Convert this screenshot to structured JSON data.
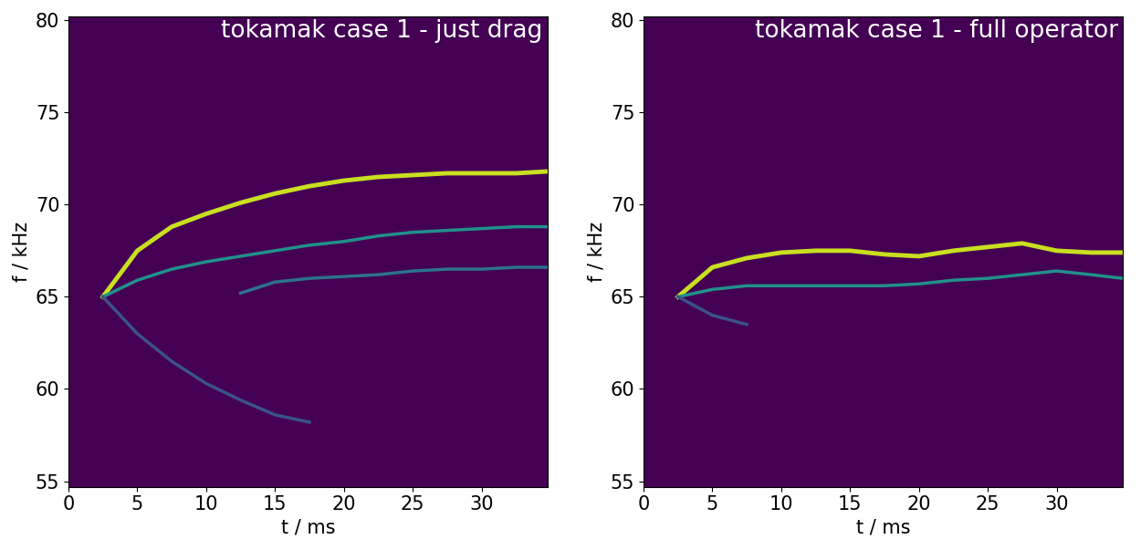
{
  "chart_data": [
    {
      "type": "line",
      "title": "tokamak case 1 - just drag",
      "x_label": "t / ms",
      "y_label": "f / kHz",
      "x": [
        2.5,
        5,
        7.5,
        10,
        12.5,
        15,
        17.5,
        20,
        22.5,
        25,
        27.5,
        30,
        32.5,
        34.8
      ],
      "series": [
        {
          "color": "#c8e020",
          "values": [
            65.0,
            67.5,
            68.8,
            69.5,
            70.1,
            70.6,
            71.0,
            71.3,
            71.5,
            71.6,
            71.7,
            71.7,
            71.7,
            71.8
          ]
        },
        {
          "color": "#21918c",
          "values": [
            65.0,
            65.9,
            66.5,
            66.9,
            67.2,
            67.5,
            67.8,
            68.0,
            68.3,
            68.5,
            68.6,
            68.7,
            68.8,
            68.8
          ]
        },
        {
          "color": "#2c728e",
          "values": [
            null,
            null,
            null,
            null,
            65.2,
            65.8,
            66.0,
            66.1,
            66.2,
            66.4,
            66.5,
            66.5,
            66.6,
            66.6
          ]
        },
        {
          "color": "#3b528b",
          "values": [
            65.0,
            63.0,
            61.5,
            60.3,
            59.4,
            58.6,
            58.2,
            null,
            null,
            null,
            null,
            null,
            null,
            null
          ]
        }
      ],
      "xlim": [
        0,
        34.8
      ],
      "ylim": [
        54.7,
        80.2
      ],
      "xticks": [
        0,
        5,
        10,
        15,
        20,
        25,
        30
      ],
      "yticks": [
        55,
        60,
        65,
        70,
        75,
        80
      ]
    },
    {
      "type": "line",
      "title": "tokamak case 1 - full operator",
      "x_label": "t / ms",
      "y_label": "f / kHz",
      "x": [
        2.5,
        5,
        7.5,
        10,
        12.5,
        15,
        17.5,
        20,
        22.5,
        25,
        27.5,
        30,
        32.5,
        34.8
      ],
      "series": [
        {
          "color": "#c8e020",
          "values": [
            65.0,
            66.6,
            67.1,
            67.4,
            67.5,
            67.5,
            67.3,
            67.2,
            67.5,
            67.7,
            67.9,
            67.5,
            67.4,
            67.4
          ]
        },
        {
          "color": "#21918c",
          "values": [
            65.0,
            65.4,
            65.6,
            65.6,
            65.6,
            65.6,
            65.6,
            65.7,
            65.9,
            66.0,
            66.2,
            66.4,
            66.2,
            66.0
          ]
        },
        {
          "color": "#3b528b",
          "values": [
            65.0,
            64.0,
            63.5,
            null,
            null,
            null,
            null,
            null,
            null,
            null,
            null,
            null,
            null,
            null
          ]
        }
      ],
      "xlim": [
        0,
        34.8
      ],
      "ylim": [
        54.7,
        80.2
      ],
      "xticks": [
        0,
        5,
        10,
        15,
        20,
        25,
        30
      ],
      "yticks": [
        55,
        60,
        65,
        70,
        75,
        80
      ]
    }
  ]
}
